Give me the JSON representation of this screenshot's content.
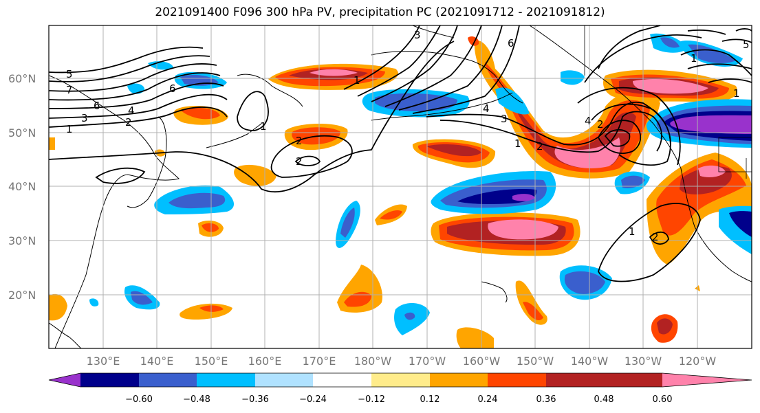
{
  "title": "2021091400 F096 300 hPa PV, precipitation PC (2021091712 - 2021091812)",
  "lat_labels": [
    "60°N",
    "50°N",
    "40°N",
    "30°N",
    "20°N"
  ],
  "lon_labels": [
    "130°E",
    "140°E",
    "150°E",
    "160°E",
    "170°E",
    "180°W",
    "170°W",
    "160°W",
    "150°W",
    "140°W",
    "130°W",
    "120°W"
  ],
  "colorbar": {
    "ticks": [
      "−0.60",
      "−0.48",
      "−0.36",
      "−0.24",
      "−0.12",
      "0.12",
      "0.24",
      "0.36",
      "0.48",
      "0.60"
    ],
    "colors": [
      "#9932cc",
      "#00008b",
      "#3a5fcd",
      "#00bfff",
      "#b0e2ff",
      "#ffffff",
      "#ffec8b",
      "#ffa500",
      "#ff4500",
      "#b22222",
      "#ff82ab"
    ]
  },
  "contour_labels": [
    "5",
    "7",
    "6",
    "3",
    "1",
    "4",
    "2",
    "6",
    "1",
    "1",
    "2",
    "2",
    "3",
    "4",
    "6",
    "3",
    "1",
    "2",
    "4",
    "2",
    "1",
    "1",
    "5",
    "2",
    "1"
  ]
}
